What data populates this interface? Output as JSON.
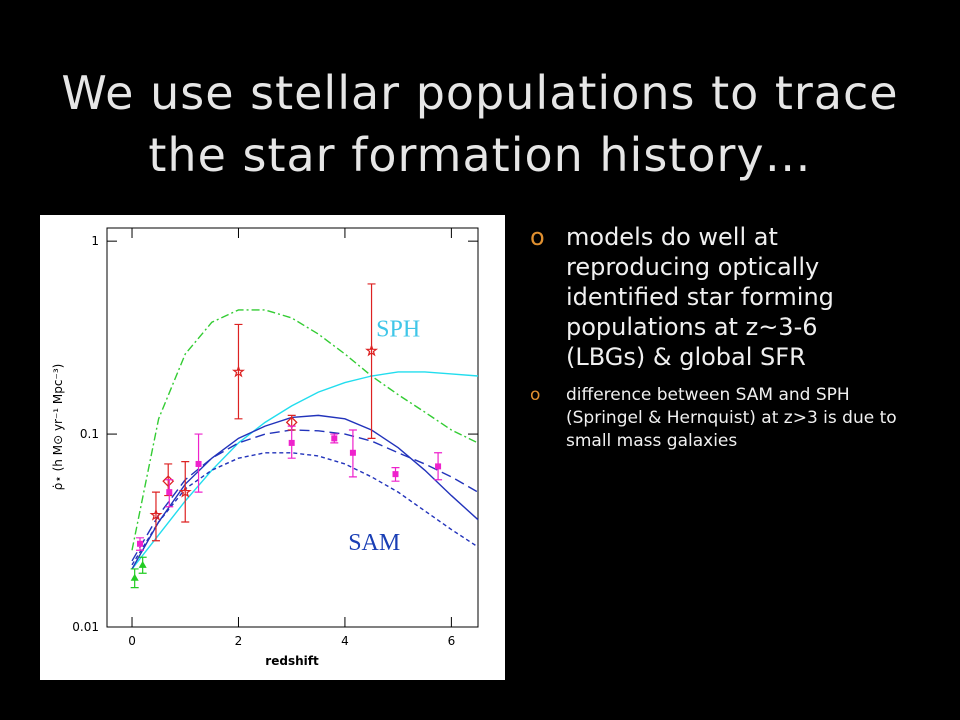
{
  "slide": {
    "title": "We use stellar populations to trace the star formation history…",
    "bullet_marker": "o",
    "bullets": [
      "models do well at reproducing optically identified star forming populations at z~3-6 (LBGs) & global SFR",
      "difference between SAM and SPH (Springel & Hernquist) at z>3 is due to small mass galaxies"
    ]
  },
  "chart_data": {
    "type": "line",
    "log_y": true,
    "x_label": "redshift",
    "y_label": "ρ̇⋆ (h M⊙ yr⁻¹ Mpc⁻³)",
    "xlim": [
      -0.47,
      6.5
    ],
    "ylim": [
      0.01,
      1.17
    ],
    "xticks": [
      0,
      2,
      4,
      6
    ],
    "yticks": [
      0.01,
      0.1,
      1
    ],
    "annotations": [
      {
        "text": "SPH",
        "color": "#3fc6e8",
        "x": 5.0,
        "y": 0.32
      },
      {
        "text": "SAM",
        "color": "#1a3fb5",
        "x": 4.55,
        "y": 0.025
      }
    ],
    "curves": [
      {
        "color": "#33cc33",
        "dash": "8 3 2 3",
        "x": [
          0,
          0.5,
          1,
          1.5,
          2,
          2.5,
          3,
          3.5,
          4,
          4.5,
          5,
          5.5,
          6,
          6.5
        ],
        "values": [
          0.025,
          0.12,
          0.26,
          0.38,
          0.44,
          0.44,
          0.4,
          0.33,
          0.26,
          0.2,
          0.16,
          0.13,
          0.105,
          0.09
        ]
      },
      {
        "color": "#22ddee",
        "dash": "none",
        "x": [
          0,
          0.5,
          1,
          1.5,
          2,
          2.5,
          3,
          3.5,
          4,
          4.5,
          5,
          5.5,
          6,
          6.5
        ],
        "values": [
          0.02,
          0.03,
          0.045,
          0.065,
          0.09,
          0.115,
          0.14,
          0.165,
          0.185,
          0.2,
          0.21,
          0.21,
          0.205,
          0.2
        ]
      },
      {
        "color": "#2233bb",
        "dash": "none",
        "x": [
          0,
          0.5,
          1,
          1.5,
          2,
          2.5,
          3,
          3.5,
          4,
          4.5,
          5,
          5.5,
          6,
          6.5
        ],
        "values": [
          0.02,
          0.035,
          0.055,
          0.075,
          0.095,
          0.11,
          0.122,
          0.125,
          0.12,
          0.105,
          0.085,
          0.065,
          0.048,
          0.036
        ]
      },
      {
        "color": "#2233bb",
        "dash": "10 5",
        "x": [
          0,
          0.5,
          1,
          1.5,
          2,
          2.5,
          3,
          3.5,
          4,
          4.5,
          5,
          5.5,
          6,
          6.5
        ],
        "values": [
          0.022,
          0.038,
          0.058,
          0.075,
          0.09,
          0.1,
          0.105,
          0.104,
          0.1,
          0.092,
          0.08,
          0.07,
          0.06,
          0.05
        ]
      },
      {
        "color": "#2233bb",
        "dash": "4 3",
        "x": [
          0,
          0.5,
          1,
          1.5,
          2,
          2.5,
          3,
          3.5,
          4,
          4.5,
          5,
          5.5,
          6,
          6.5
        ],
        "values": [
          0.021,
          0.035,
          0.052,
          0.065,
          0.075,
          0.08,
          0.08,
          0.077,
          0.07,
          0.06,
          0.05,
          0.04,
          0.032,
          0.026
        ]
      }
    ],
    "points": [
      {
        "color": "#dd2222",
        "marker": "star",
        "x": [
          0.45,
          1.0,
          2.0,
          4.5
        ],
        "values": [
          0.038,
          0.05,
          0.21,
          0.27
        ],
        "lower": [
          0.028,
          0.035,
          0.12,
          0.095
        ],
        "upper": [
          0.05,
          0.072,
          0.37,
          0.6
        ]
      },
      {
        "color": "#dd2222",
        "marker": "diamond",
        "x": [
          0.68,
          3.0
        ],
        "values": [
          0.057,
          0.115
        ],
        "lower": [
          0.048,
          0.105
        ],
        "upper": [
          0.07,
          0.125
        ]
      },
      {
        "color": "#ee22cc",
        "marker": "square",
        "x": [
          0.15,
          0.7,
          1.25,
          3.0,
          3.8,
          4.15,
          4.95,
          5.75
        ],
        "values": [
          0.027,
          0.05,
          0.07,
          0.09,
          0.095,
          0.08,
          0.062,
          0.068
        ],
        "lower": [
          0.025,
          0.042,
          0.05,
          0.075,
          0.09,
          0.06,
          0.057,
          0.058
        ],
        "upper": [
          0.029,
          0.058,
          0.1,
          0.11,
          0.1,
          0.105,
          0.067,
          0.08
        ]
      },
      {
        "color": "#22cc22",
        "marker": "triangle",
        "x": [
          0.05,
          0.2
        ],
        "values": [
          0.018,
          0.021
        ],
        "lower": [
          0.016,
          0.019
        ],
        "upper": [
          0.02,
          0.023
        ]
      }
    ]
  }
}
